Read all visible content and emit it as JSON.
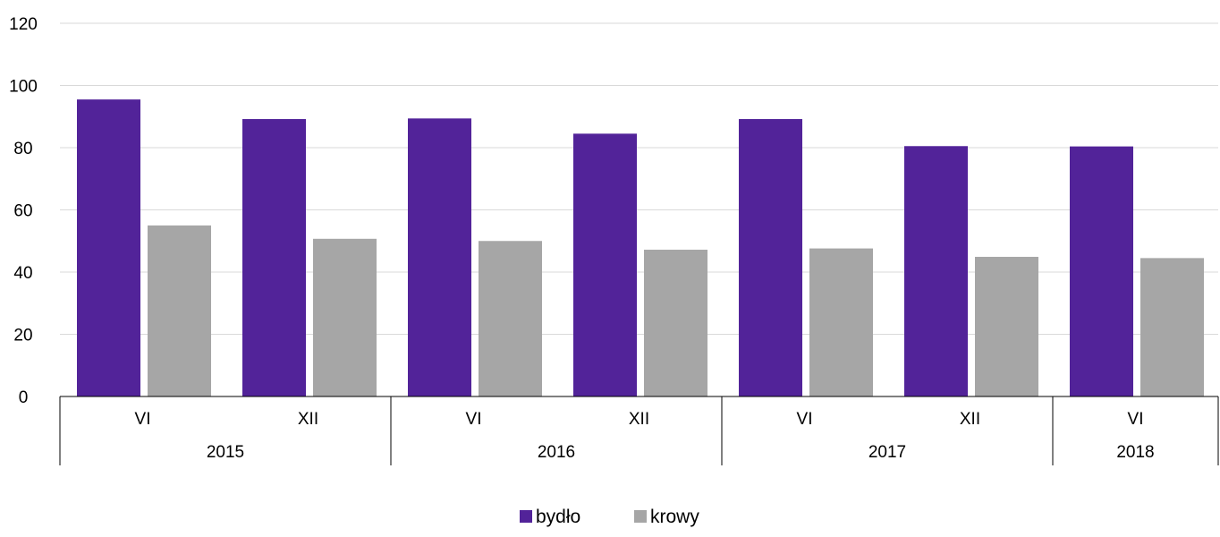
{
  "chart_data": {
    "type": "bar",
    "categories": [
      "VI",
      "XII",
      "VI",
      "XII",
      "VI",
      "XII",
      "VI"
    ],
    "groups": [
      {
        "label": "2015",
        "count": 2
      },
      {
        "label": "2016",
        "count": 2
      },
      {
        "label": "2017",
        "count": 2
      },
      {
        "label": "2018",
        "count": 1
      }
    ],
    "series": [
      {
        "name": "bydło",
        "color": "#522399",
        "values": [
          95.5,
          89.2,
          89.4,
          84.5,
          89.2,
          80.5,
          80.4
        ]
      },
      {
        "name": "krowy",
        "color": "#a6a6a6",
        "values": [
          55.0,
          50.7,
          50.0,
          47.2,
          47.6,
          44.9,
          44.5
        ]
      }
    ],
    "ylim": [
      0,
      120
    ],
    "yticks": [
      0,
      20,
      40,
      60,
      80,
      100,
      120
    ],
    "grid": true,
    "legend": "bottom-center",
    "title": "",
    "xlabel": "",
    "ylabel": ""
  }
}
